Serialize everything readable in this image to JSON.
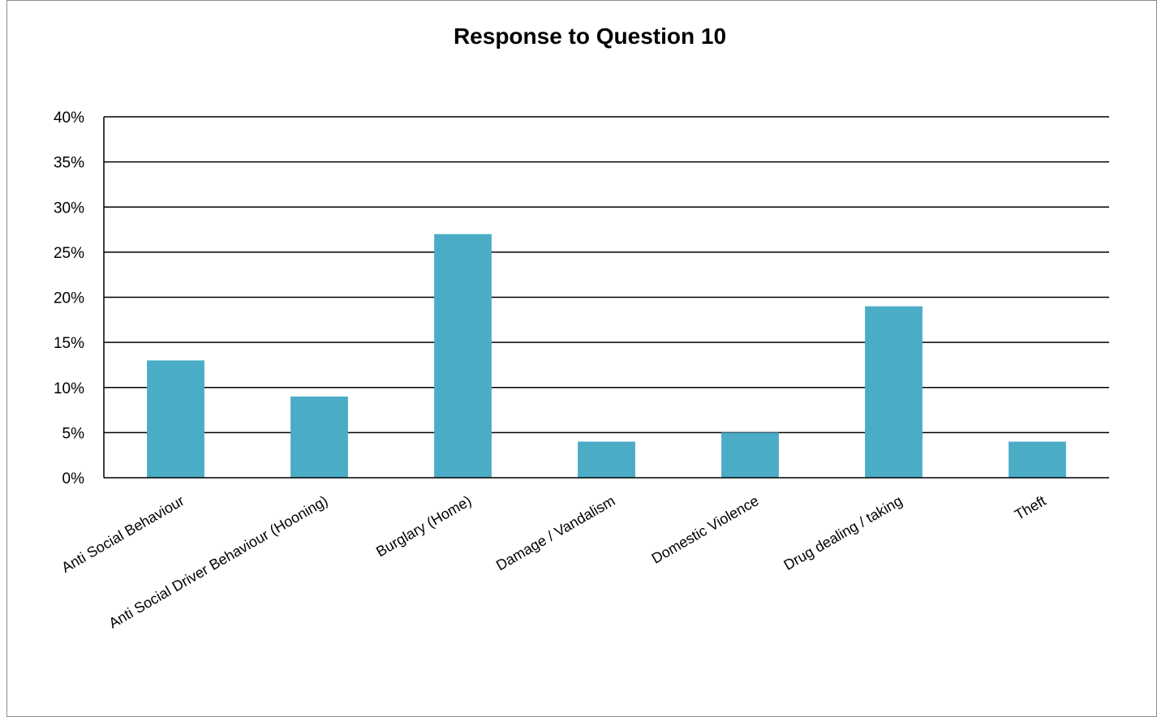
{
  "chart_data": {
    "type": "bar",
    "title": "Response to Question 10",
    "xlabel": "",
    "ylabel": "",
    "categories": [
      "Anti Social Behaviour",
      "Anti Social Driver Behaviour (Hooning)",
      "Burglary (Home)",
      "Damage / Vandalism",
      "Domestic Violence",
      "Drug dealing / taking",
      "Theft"
    ],
    "values": [
      13,
      9,
      27,
      4,
      5,
      19,
      4
    ],
    "ylim": [
      0,
      40
    ],
    "yticks": [
      "0%",
      "5%",
      "10%",
      "15%",
      "20%",
      "25%",
      "30%",
      "35%",
      "40%"
    ],
    "grid": true,
    "legend": "none",
    "colors": {
      "bar": "#4bacc6",
      "grid": "#000000",
      "frame": "#8c8c8c"
    }
  }
}
